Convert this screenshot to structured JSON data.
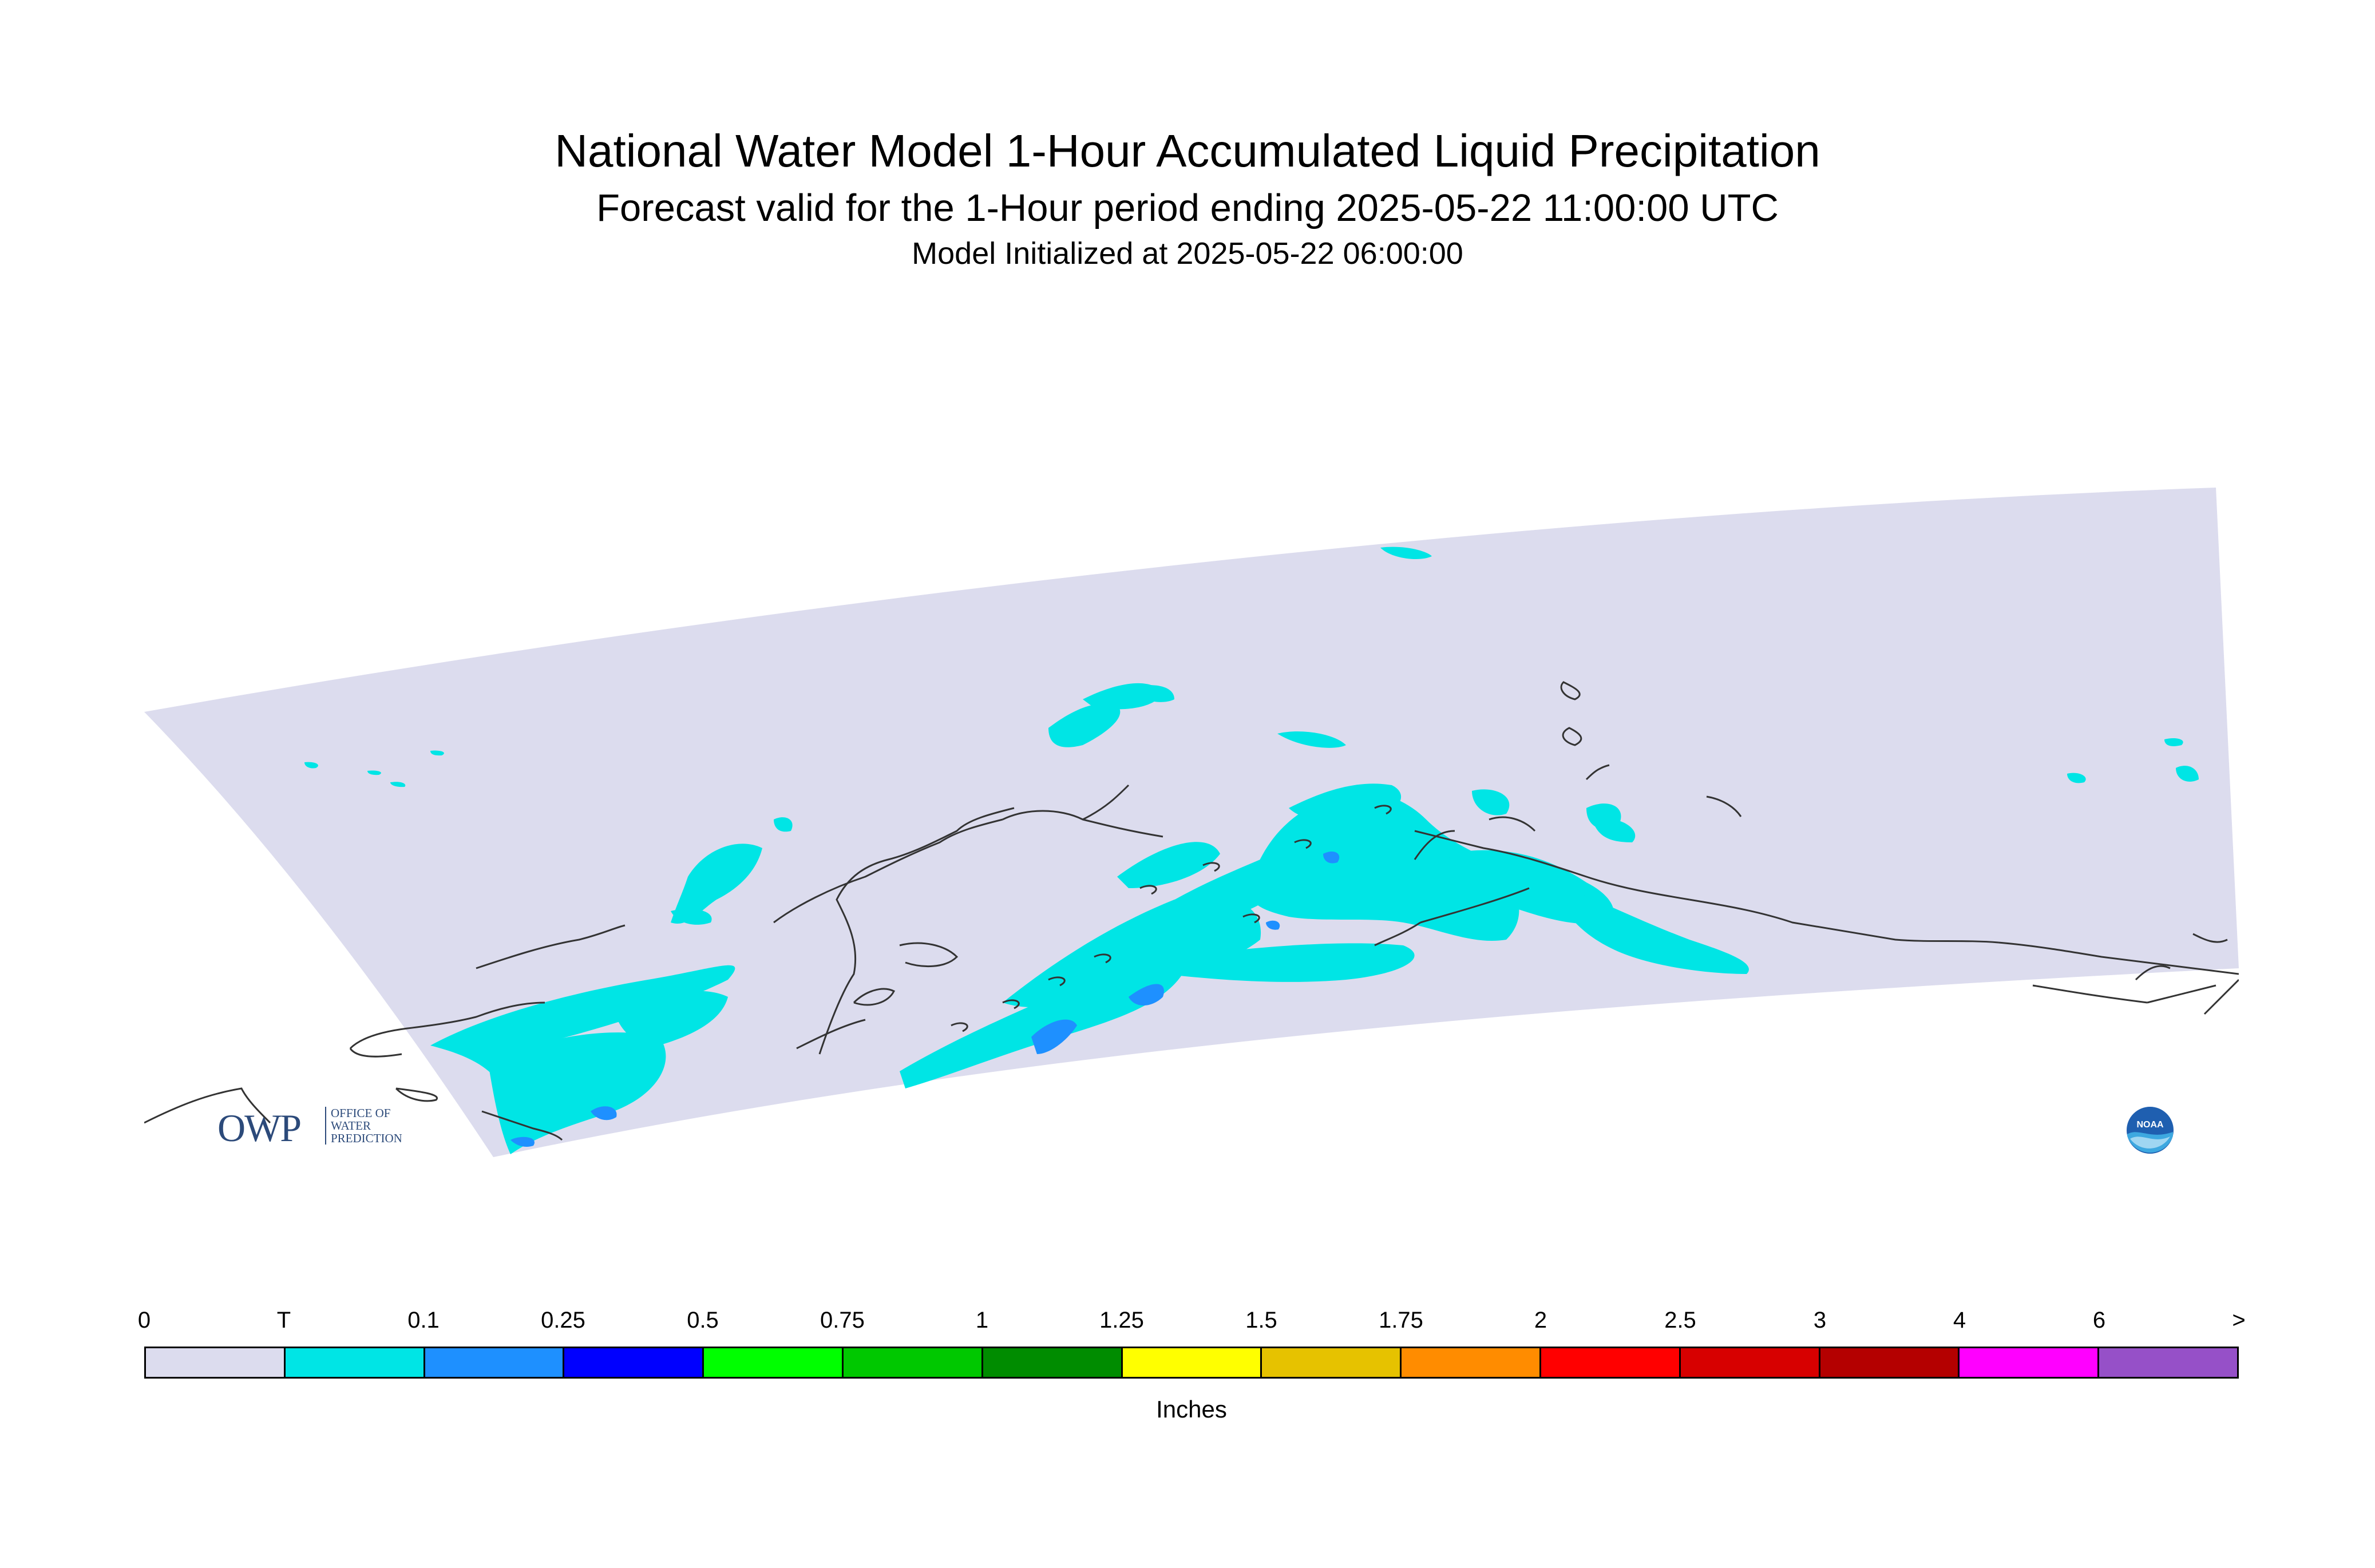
{
  "title": "National Water Model 1-Hour Accumulated Liquid Precipitation",
  "subtitle": "Forecast valid for the 1-Hour period ending 2025-05-22 11:00:00 UTC",
  "init_line": "Model Initialized at 2025-05-22 06:00:00",
  "logos": {
    "owp_mark": "OWP",
    "owp_text": "OFFICE OF WATER PREDICTION",
    "noaa_text": "NOAA"
  },
  "colors": {
    "no_precip_domain": "#dcdcee",
    "trace": "#00e5e5",
    "light": "#1e90ff",
    "coastline": "#333333"
  },
  "legend": {
    "units": "Inches",
    "ticks": [
      "0",
      "T",
      "0.1",
      "0.25",
      "0.5",
      "0.75",
      "1",
      "1.25",
      "1.5",
      "1.75",
      "2",
      "2.5",
      "3",
      "4",
      "6",
      ">"
    ],
    "colors": [
      "#dcdcee",
      "#00e5e5",
      "#1e90ff",
      "#0000ff",
      "#00ff00",
      "#00c800",
      "#008c00",
      "#ffff00",
      "#e6c200",
      "#ff8c00",
      "#ff0000",
      "#d70000",
      "#b40000",
      "#ff00ff",
      "#9650c8"
    ]
  }
}
